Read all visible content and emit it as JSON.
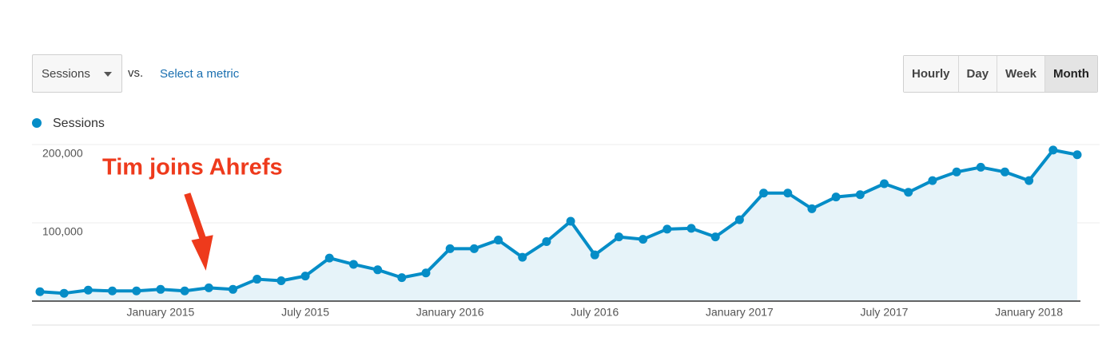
{
  "ui": {
    "metric_dropdown": "Sessions",
    "vs": "vs.",
    "select_metric": "Select a metric",
    "buttons": [
      "Hourly",
      "Day",
      "Week",
      "Month"
    ],
    "active_button": 3
  },
  "chart_data": {
    "type": "line",
    "annotation": "Tim joins Ahrefs",
    "categories": [
      null,
      null,
      null,
      null,
      null,
      "January 2015",
      null,
      null,
      null,
      null,
      null,
      "July 2015",
      null,
      null,
      null,
      null,
      null,
      "January 2016",
      null,
      null,
      null,
      null,
      null,
      "July 2016",
      null,
      null,
      null,
      null,
      null,
      "January 2017",
      null,
      null,
      null,
      null,
      null,
      "July 2017",
      null,
      null,
      null,
      null,
      null,
      "January 2018",
      null,
      null
    ],
    "series": [
      {
        "name": "Sessions",
        "color": "#058dc7",
        "values": [
          12000,
          10000,
          14000,
          13000,
          13000,
          15000,
          13000,
          17000,
          15000,
          28000,
          26000,
          32000,
          55000,
          47000,
          40000,
          30000,
          36000,
          67000,
          67000,
          78000,
          56000,
          76000,
          102000,
          59000,
          82000,
          79000,
          92000,
          93000,
          82000,
          104000,
          138000,
          138000,
          118000,
          133000,
          136000,
          150000,
          139000,
          154000,
          165000,
          171000,
          165000,
          154000,
          193000,
          187000
        ]
      }
    ],
    "ylim": [
      0,
      200000
    ],
    "yticks": [
      {
        "value": 100000,
        "label": "100,000"
      },
      {
        "value": 200000,
        "label": "200,000"
      }
    ],
    "grid": true,
    "area_color": "#e6f3f9"
  }
}
